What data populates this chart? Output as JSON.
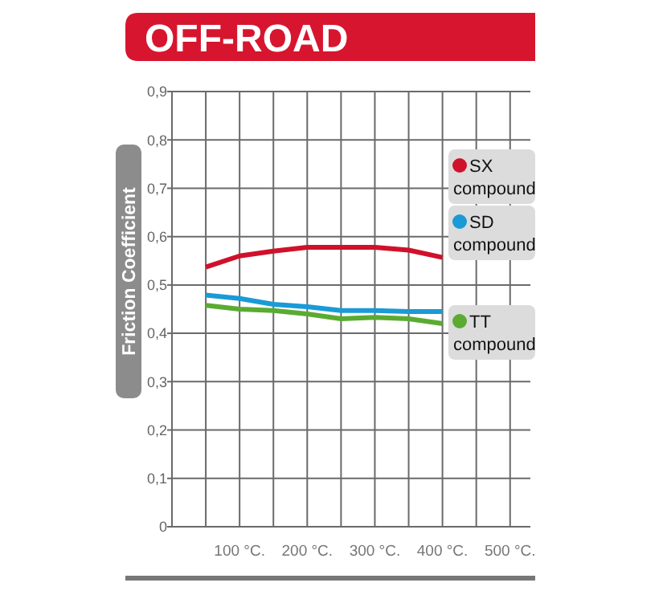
{
  "chart_data": {
    "type": "line",
    "title": "OFF-ROAD",
    "ylabel": "Friction Coefficient",
    "x": [
      50,
      100,
      150,
      200,
      250,
      300,
      350,
      400
    ],
    "series": [
      {
        "name": "SX compound",
        "color": "#d0112b",
        "values": [
          0.537,
          0.56,
          0.57,
          0.578,
          0.578,
          0.578,
          0.572,
          0.557
        ]
      },
      {
        "name": "SD compound",
        "color": "#1a9ad6",
        "values": [
          0.479,
          0.472,
          0.46,
          0.455,
          0.447,
          0.447,
          0.445,
          0.445
        ]
      },
      {
        "name": "TT compound",
        "color": "#5aab32",
        "values": [
          0.458,
          0.45,
          0.447,
          0.44,
          0.43,
          0.433,
          0.43,
          0.42
        ]
      }
    ],
    "xlim": [
      0,
      530
    ],
    "xticks": [
      {
        "value": 50,
        "label": null
      },
      {
        "value": 100,
        "label": "100 °C."
      },
      {
        "value": 150,
        "label": null
      },
      {
        "value": 200,
        "label": "200 °C."
      },
      {
        "value": 250,
        "label": null
      },
      {
        "value": 300,
        "label": "300 °C."
      },
      {
        "value": 350,
        "label": null
      },
      {
        "value": 400,
        "label": "400 °C."
      },
      {
        "value": 450,
        "label": null
      },
      {
        "value": 500,
        "label": "500 °C."
      }
    ],
    "ylim": [
      0,
      0.9
    ],
    "yticks": [
      0,
      {
        "value": 0.1,
        "label": "0,1"
      },
      {
        "value": 0.2,
        "label": "0,2"
      },
      {
        "value": 0.3,
        "label": "0,3"
      },
      {
        "value": 0.4,
        "label": "0,4"
      },
      {
        "value": 0.5,
        "label": "0,5"
      },
      {
        "value": 0.6,
        "label": "0,6"
      },
      {
        "value": 0.7,
        "label": "0,7"
      },
      {
        "value": 0.8,
        "label": "0,8"
      },
      {
        "value": 0.9,
        "label": "0,9"
      }
    ],
    "grid": true,
    "legend": "right",
    "line_style": "solid",
    "marker": "none"
  }
}
